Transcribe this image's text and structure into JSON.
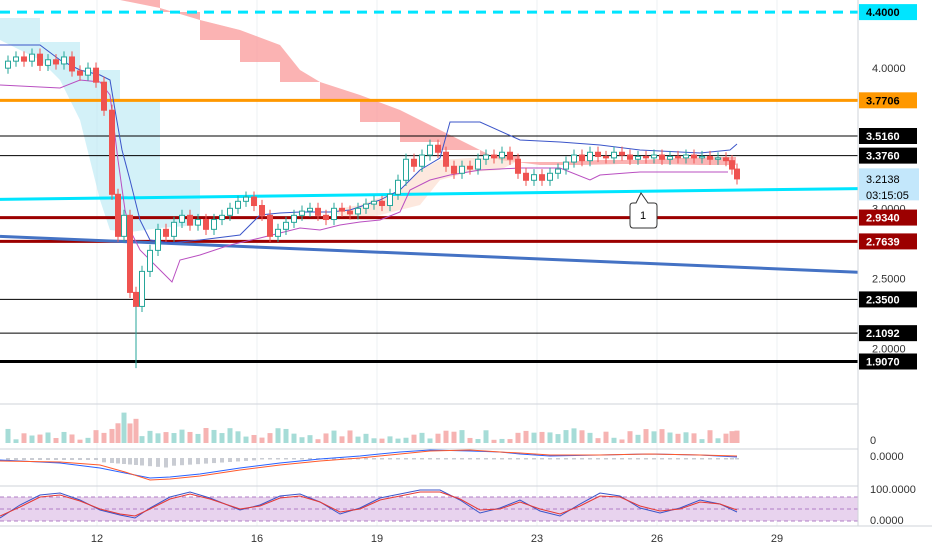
{
  "chart_data": {
    "type": "candlestick",
    "title": "",
    "x_ticks": [
      "12",
      "16",
      "19",
      "23",
      "26",
      "29"
    ],
    "y_ticks": [
      {
        "value": 4.0,
        "label": "4.0000"
      },
      {
        "value": 3.0,
        "label": "3.0000"
      },
      {
        "value": 2.5,
        "label": "2.5000"
      },
      {
        "value": 2.0,
        "label": "2.0000"
      }
    ],
    "ylim": [
      1.74,
      4.47
    ],
    "price_levels": [
      {
        "value": 4.4,
        "label": "4.4000",
        "color": "#00e5ff",
        "style": "dashed",
        "box_bg": "#00e5ff",
        "box_fg": "#000000"
      },
      {
        "value": 3.7706,
        "label": "3.7706",
        "color": "#ff9800",
        "style": "solid-thick",
        "box_bg": "#ff9800",
        "box_fg": "#000000"
      },
      {
        "value": 3.516,
        "label": "3.5160",
        "color": "#000000",
        "style": "solid",
        "box_bg": "#000000",
        "box_fg": "#ffffff"
      },
      {
        "value": 3.376,
        "label": "3.3760",
        "color": "#000000",
        "style": "solid",
        "box_bg": "#000000",
        "box_fg": "#ffffff"
      },
      {
        "value": 2.934,
        "label": "2.9340",
        "color": "#9c0000",
        "style": "solid-thick",
        "box_bg": "#9c0000",
        "box_fg": "#ffffff"
      },
      {
        "value": 2.7639,
        "label": "2.7639",
        "color": "#9c0000",
        "style": "solid-thick",
        "box_bg": "#9c0000",
        "box_fg": "#ffffff"
      },
      {
        "value": 2.35,
        "label": "2.3500",
        "color": "#000000",
        "style": "solid",
        "box_bg": "#000000",
        "box_fg": "#ffffff"
      },
      {
        "value": 2.1092,
        "label": "2.1092",
        "color": "#000000",
        "style": "solid",
        "box_bg": "#000000",
        "box_fg": "#ffffff"
      },
      {
        "value": 1.907,
        "label": "1.9070",
        "color": "#000000",
        "style": "solid-thick",
        "box_bg": "#000000",
        "box_fg": "#ffffff"
      }
    ],
    "current_price": {
      "value": 3.2138,
      "label": "3.2138",
      "countdown": "03:15:05",
      "box_bg": "#c3e7fb",
      "box_fg": "#000000"
    },
    "trendlines": [
      {
        "name": "cyan",
        "color": "#00e5ff",
        "from": [
          "2019-12-10",
          3.065
        ],
        "to": [
          "2019-12-28",
          3.13
        ]
      },
      {
        "name": "blue",
        "color": "#4472c4",
        "from": [
          "2019-12-10",
          2.795
        ],
        "to": [
          "2019-12-28",
          2.58
        ]
      }
    ],
    "annotation": {
      "text": "1",
      "at": [
        "2019-12-25",
        3.12
      ]
    },
    "volume_axis_label": "0",
    "macd_axis_label": "0.0000",
    "oscillator_axis_labels": [
      "100.0000",
      "0.0000"
    ]
  }
}
